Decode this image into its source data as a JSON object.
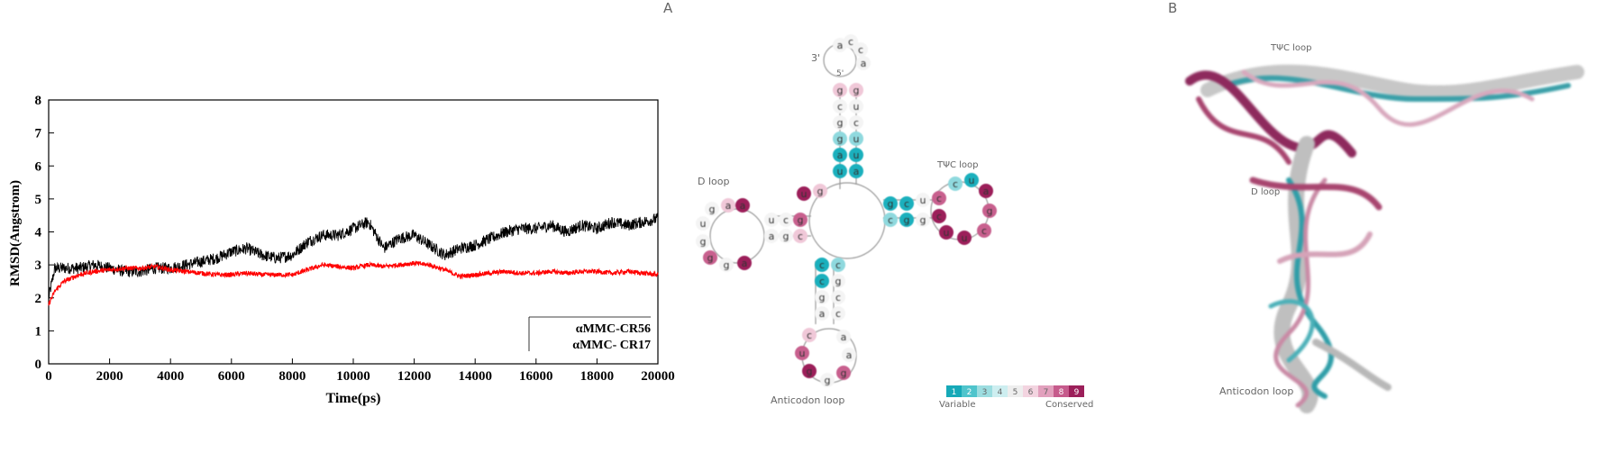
{
  "chart_data": {
    "type": "line",
    "title": "",
    "xlabel": "Time(ps)",
    "ylabel": "RMSD(Angstrom)",
    "xlim": [
      0,
      20000
    ],
    "ylim": [
      0,
      8
    ],
    "xticks": [
      0,
      2000,
      4000,
      6000,
      8000,
      10000,
      12000,
      14000,
      16000,
      18000,
      20000
    ],
    "yticks": [
      0,
      1,
      2,
      3,
      4,
      5,
      6,
      7,
      8
    ],
    "legend_position": "bottom-right",
    "series": [
      {
        "name": "αMMC-CR56",
        "color": "#000000",
        "x": [
          0,
          200,
          500,
          1000,
          1500,
          2000,
          2500,
          3000,
          3500,
          4000,
          4500,
          5000,
          5500,
          6000,
          6500,
          7000,
          7500,
          8000,
          8500,
          9000,
          9500,
          10000,
          10500,
          11000,
          11500,
          12000,
          12500,
          13000,
          13500,
          14000,
          14500,
          15000,
          15500,
          16000,
          16500,
          17000,
          17500,
          18000,
          18500,
          19000,
          19500,
          20000
        ],
        "y": [
          2.0,
          2.9,
          2.9,
          2.9,
          3.0,
          2.9,
          2.8,
          2.8,
          2.9,
          2.9,
          3.0,
          3.1,
          3.2,
          3.4,
          3.5,
          3.3,
          3.2,
          3.3,
          3.7,
          3.9,
          3.9,
          4.1,
          4.3,
          3.5,
          3.8,
          3.9,
          3.6,
          3.3,
          3.5,
          3.6,
          3.8,
          4.0,
          4.1,
          4.1,
          4.2,
          4.0,
          4.2,
          4.1,
          4.3,
          4.2,
          4.3,
          4.4
        ]
      },
      {
        "name": "αMMC- CR17",
        "color": "#ff0000",
        "x": [
          0,
          200,
          500,
          1000,
          1500,
          2000,
          2500,
          3000,
          3500,
          4000,
          4500,
          5000,
          5500,
          6000,
          6500,
          7000,
          7500,
          8000,
          8500,
          9000,
          9500,
          10000,
          10500,
          11000,
          11500,
          12000,
          12500,
          13000,
          13500,
          14000,
          14500,
          15000,
          15500,
          16000,
          16500,
          17000,
          17500,
          18000,
          18500,
          19000,
          19500,
          20000
        ],
        "y": [
          1.8,
          2.2,
          2.5,
          2.7,
          2.8,
          2.85,
          2.9,
          2.9,
          2.95,
          2.85,
          2.8,
          2.75,
          2.7,
          2.7,
          2.75,
          2.7,
          2.7,
          2.7,
          2.85,
          3.0,
          2.95,
          2.9,
          3.0,
          2.95,
          3.0,
          3.05,
          3.0,
          2.85,
          2.65,
          2.7,
          2.75,
          2.8,
          2.75,
          2.75,
          2.8,
          2.75,
          2.8,
          2.8,
          2.75,
          2.8,
          2.75,
          2.7
        ]
      }
    ]
  },
  "panels": {
    "a": {
      "letter": "A",
      "three_prime": "3'",
      "five_prime": "5'",
      "d_loop": "D loop",
      "tpsic_loop": "TΨC loop",
      "anticodon_loop": "Anticodon loop",
      "scale_numbers": [
        "1",
        "2",
        "3",
        "4",
        "5",
        "6",
        "7",
        "8",
        "9"
      ],
      "scale_left": "Variable",
      "scale_right": "Conserved",
      "scale_colors": [
        "#16a9b8",
        "#4fc4cc",
        "#9cdde0",
        "#cdeef0",
        "#eeeeee",
        "#f3d4e0",
        "#e2a0bd",
        "#c65b8c",
        "#9c1f5a"
      ]
    },
    "b": {
      "letter": "B",
      "tpsic_loop": "TΨC loop",
      "d_loop": "D loop",
      "anticodon_loop": "Anticodon loop"
    }
  }
}
